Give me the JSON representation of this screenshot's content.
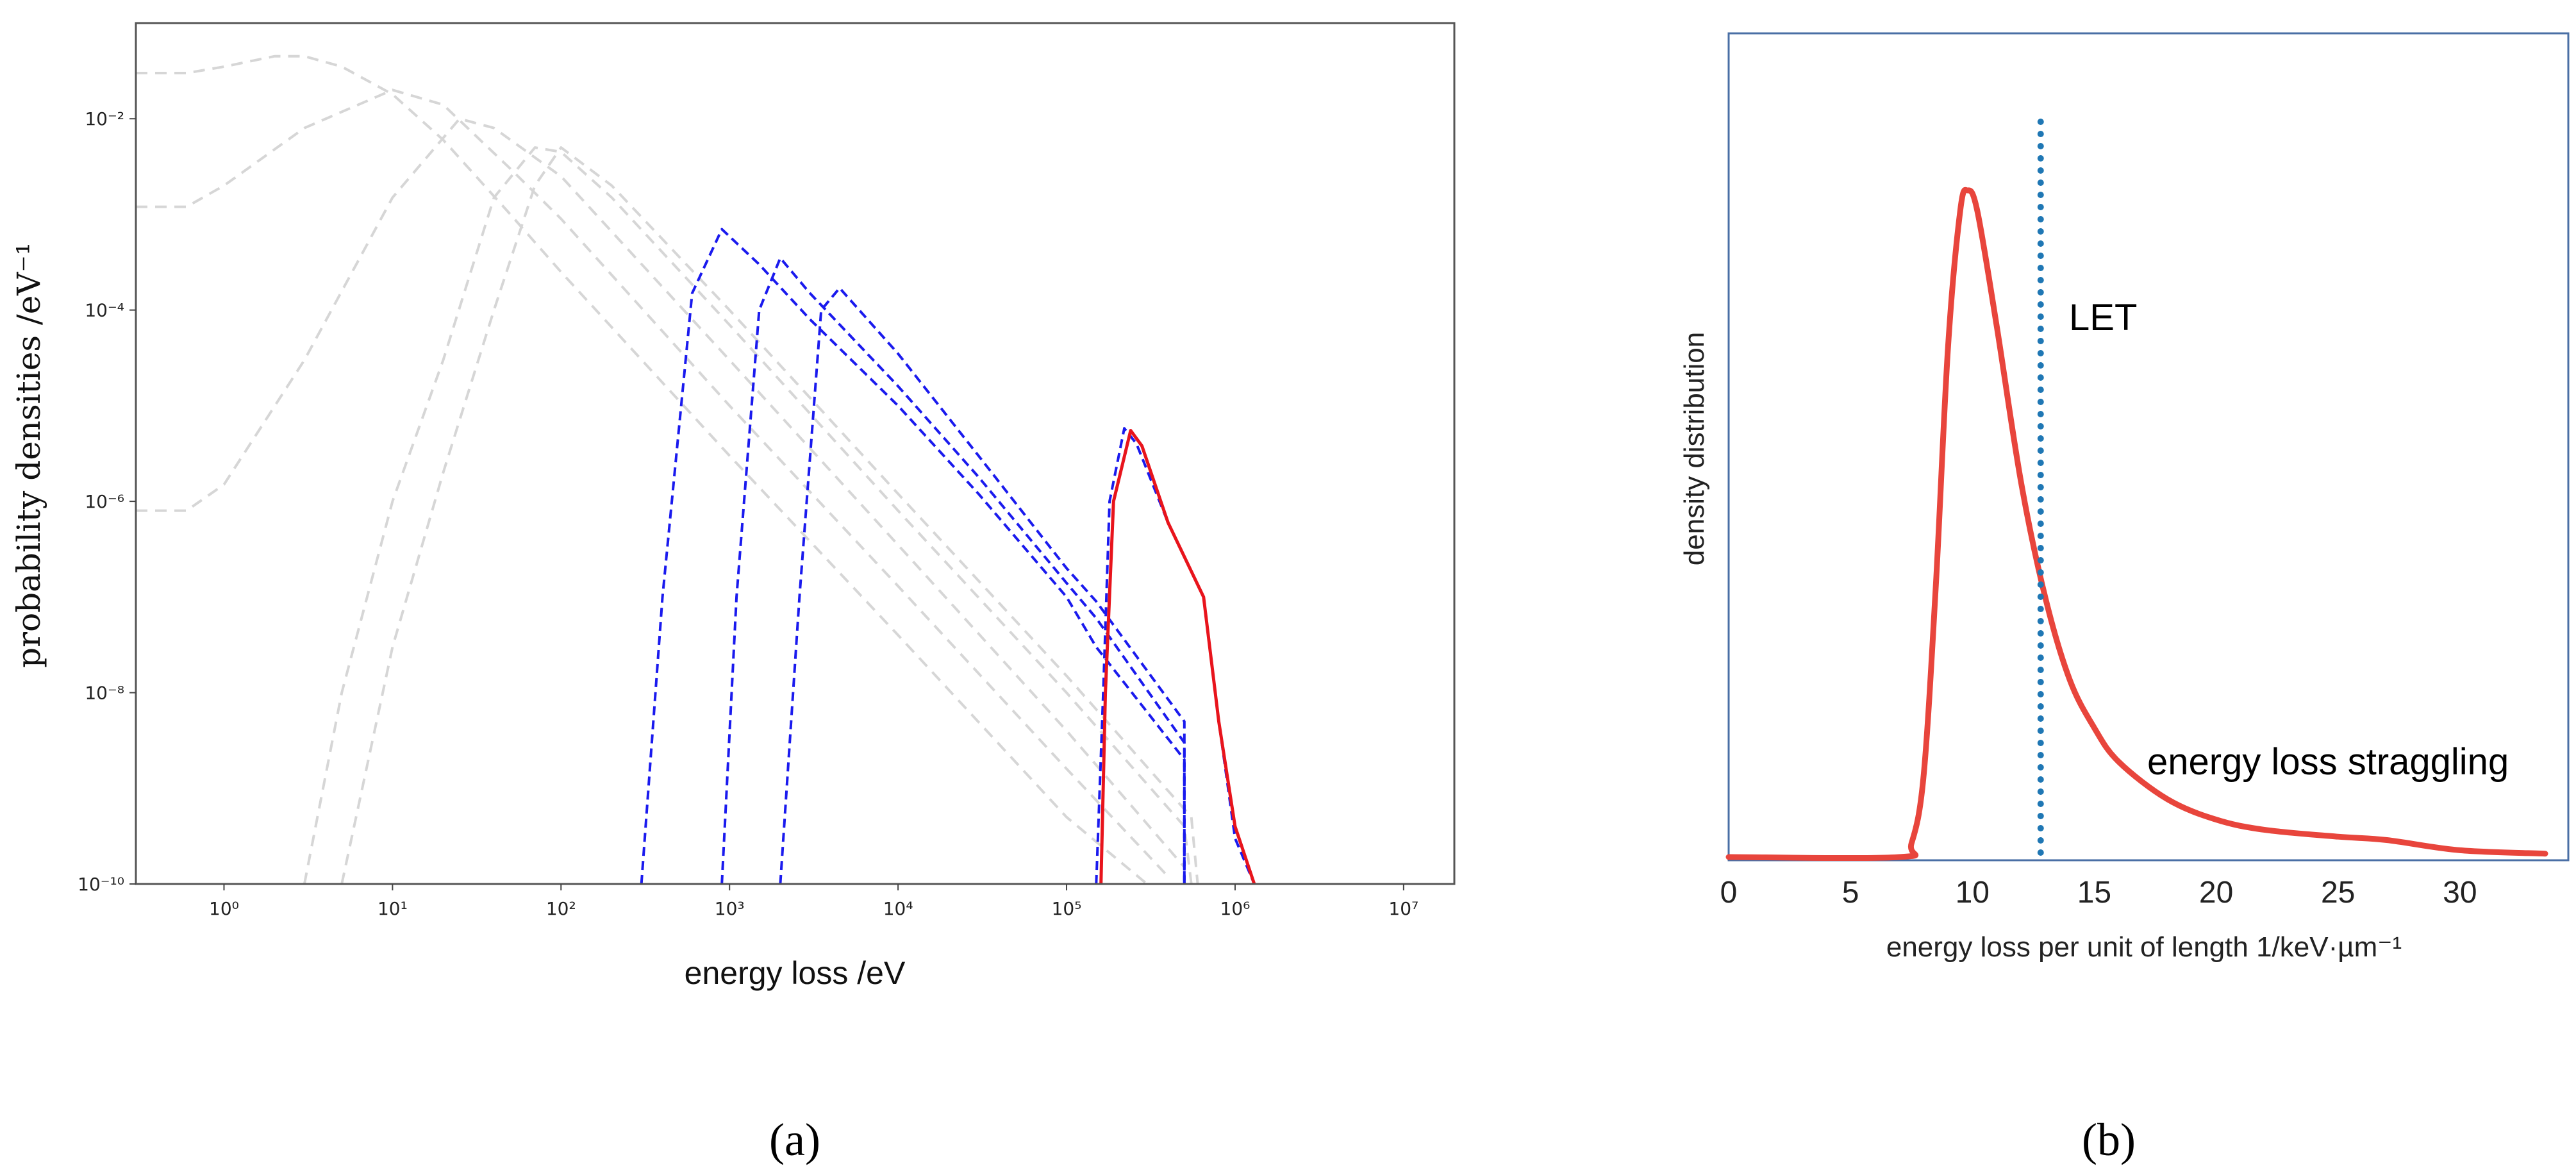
{
  "figure": {
    "panel_a_label": "(a)",
    "panel_b_label": "(b)"
  },
  "chart_data": [
    {
      "type": "line",
      "xlabel": "energy loss /eV",
      "ylabel": "probability densities /eV⁻¹",
      "x_scale": "log",
      "y_scale": "log",
      "xlim": [
        0.3,
        20000000
      ],
      "ylim": [
        1e-10,
        0.1
      ],
      "x_ticks": [
        {
          "value": 1,
          "label": "10⁰"
        },
        {
          "value": 10,
          "label": "10¹"
        },
        {
          "value": 100,
          "label": "10²"
        },
        {
          "value": 1000,
          "label": "10³"
        },
        {
          "value": 10000,
          "label": "10⁴"
        },
        {
          "value": 100000,
          "label": "10⁵"
        },
        {
          "value": 1000000,
          "label": "10⁶"
        },
        {
          "value": 10000000,
          "label": "10⁷"
        }
      ],
      "y_ticks": [
        {
          "value": 1e-10,
          "label": "10⁻¹⁰"
        },
        {
          "value": 1e-08,
          "label": "10⁻⁸"
        },
        {
          "value": 1e-06,
          "label": "10⁻⁶"
        },
        {
          "value": 0.0001,
          "label": "10⁻⁴"
        },
        {
          "value": 0.01,
          "label": "10⁻²"
        }
      ],
      "grid": false,
      "colors": {
        "grey": "#d6d6d6",
        "blue": "#1a1aee",
        "red": "#e8141c"
      },
      "series": [
        {
          "style": "grey-dashed",
          "points": [
            [
              0.3,
              0.03
            ],
            [
              0.6,
              0.03
            ],
            [
              1,
              0.035
            ],
            [
              2,
              0.045
            ],
            [
              3,
              0.045
            ],
            [
              5,
              0.035
            ],
            [
              10,
              0.018
            ],
            [
              20,
              0.006
            ],
            [
              50,
              0.001
            ],
            [
              100,
              0.00025
            ],
            [
              1000,
              3e-06
            ],
            [
              10000,
              4e-08
            ],
            [
              100000,
              5e-10
            ],
            [
              300000,
              1e-10
            ]
          ]
        },
        {
          "style": "grey-dashed",
          "points": [
            [
              0.3,
              0.0012
            ],
            [
              0.6,
              0.0012
            ],
            [
              1,
              0.002
            ],
            [
              3,
              0.008
            ],
            [
              10,
              0.02
            ],
            [
              20,
              0.014
            ],
            [
              50,
              0.003
            ],
            [
              100,
              0.0009
            ],
            [
              1000,
              1e-05
            ],
            [
              10000,
              1.3e-07
            ],
            [
              100000,
              1.6e-09
            ],
            [
              400000,
              1.2e-10
            ]
          ]
        },
        {
          "style": "grey-dashed",
          "points": [
            [
              0.3,
              8e-07
            ],
            [
              0.6,
              8e-07
            ],
            [
              1,
              1.5e-06
            ],
            [
              3,
              3e-05
            ],
            [
              10,
              0.0015
            ],
            [
              25,
              0.01
            ],
            [
              40,
              0.008
            ],
            [
              100,
              0.0025
            ],
            [
              1000,
              3e-05
            ],
            [
              10000,
              3.5e-07
            ],
            [
              100000,
              4e-09
            ],
            [
              500000,
              1.5e-10
            ]
          ]
        },
        {
          "style": "grey-dashed",
          "points": [
            [
              3,
              1e-10
            ],
            [
              5,
              1e-08
            ],
            [
              10,
              1e-06
            ],
            [
              20,
              3e-05
            ],
            [
              40,
              0.0015
            ],
            [
              70,
              0.005
            ],
            [
              100,
              0.0045
            ],
            [
              200,
              0.0015
            ],
            [
              1000,
              7e-05
            ],
            [
              10000,
              8e-07
            ],
            [
              100000,
              1e-08
            ],
            [
              500000,
              4e-10
            ],
            [
              550000,
              1e-10
            ]
          ]
        },
        {
          "style": "grey-dashed",
          "points": [
            [
              5,
              1e-10
            ],
            [
              10,
              3e-08
            ],
            [
              20,
              2e-06
            ],
            [
              40,
              0.0001
            ],
            [
              70,
              0.002
            ],
            [
              100,
              0.005
            ],
            [
              200,
              0.002
            ],
            [
              1000,
              0.0001
            ],
            [
              10000,
              1.2e-06
            ],
            [
              100000,
              1.5e-08
            ],
            [
              550000,
              5e-10
            ],
            [
              600000,
              1e-10
            ]
          ]
        },
        {
          "style": "blue-dashed",
          "points": [
            [
              300,
              1e-10
            ],
            [
              400,
              1e-07
            ],
            [
              600,
              0.00015
            ],
            [
              900,
              0.0007
            ],
            [
              1500,
              0.0003
            ],
            [
              3000,
              8e-05
            ],
            [
              10000,
              1e-05
            ],
            [
              30000,
              1.2e-06
            ],
            [
              100000,
              1e-07
            ],
            [
              150000,
              3e-08
            ],
            [
              500000,
              2e-09
            ],
            [
              500000,
              1.5e-10
            ],
            [
              500000,
              1e-10
            ]
          ]
        },
        {
          "style": "blue-dashed",
          "points": [
            [
              900,
              1e-10
            ],
            [
              1100,
              1e-07
            ],
            [
              1500,
              0.0001
            ],
            [
              2000,
              0.00035
            ],
            [
              3000,
              0.00015
            ],
            [
              10000,
              1.6e-05
            ],
            [
              30000,
              1.8e-06
            ],
            [
              100000,
              1.4e-07
            ],
            [
              150000,
              6e-08
            ],
            [
              500000,
              3e-09
            ],
            [
              500000,
              1e-10
            ]
          ]
        },
        {
          "style": "blue-dashed",
          "points": [
            [
              2000,
              1e-10
            ],
            [
              2600,
              1e-07
            ],
            [
              3500,
              0.0001
            ],
            [
              4500,
              0.00017
            ],
            [
              10000,
              3.5e-05
            ],
            [
              30000,
              3e-06
            ],
            [
              100000,
              2e-07
            ],
            [
              150000,
              9e-08
            ],
            [
              500000,
              5e-09
            ],
            [
              500000,
              1e-10
            ]
          ]
        },
        {
          "style": "blue-dashed",
          "points": [
            [
              150000,
              1e-10
            ],
            [
              165000,
              1e-08
            ],
            [
              180000,
              1e-06
            ],
            [
              220000,
              5.8e-06
            ],
            [
              260000,
              4e-06
            ],
            [
              400000,
              6e-07
            ],
            [
              650000,
              1e-07
            ],
            [
              800000,
              5e-09
            ],
            [
              1000000,
              3e-10
            ],
            [
              1300000,
              1e-10
            ]
          ]
        },
        {
          "style": "red-solid",
          "points": [
            [
              160000,
              1e-10
            ],
            [
              170000,
              1e-08
            ],
            [
              190000,
              1e-06
            ],
            [
              240000,
              5.5e-06
            ],
            [
              280000,
              3.8e-06
            ],
            [
              400000,
              6e-07
            ],
            [
              650000,
              1e-07
            ],
            [
              800000,
              5e-09
            ],
            [
              1000000,
              4e-10
            ],
            [
              1300000,
              1e-10
            ]
          ]
        }
      ]
    },
    {
      "type": "line",
      "xlabel": "energy loss per unit of length 1/keV·µm⁻¹",
      "ylabel": "density distribution",
      "xlim": [
        0,
        34
      ],
      "ylim": [
        0,
        1.0
      ],
      "x_ticks": [
        {
          "value": 0,
          "label": "0"
        },
        {
          "value": 5,
          "label": "5"
        },
        {
          "value": 10,
          "label": "10"
        },
        {
          "value": 15,
          "label": "15"
        },
        {
          "value": 20,
          "label": "20"
        },
        {
          "value": 25,
          "label": "25"
        },
        {
          "value": 30,
          "label": "30"
        }
      ],
      "grid": false,
      "colors": {
        "curve": "#e8453c",
        "let_line": "#1f77b4",
        "frame": "#4a6fa5"
      },
      "series": [
        {
          "points": [
            [
              0,
              0.0
            ],
            [
              7,
              0.0
            ],
            [
              7.5,
              0.02
            ],
            [
              8,
              0.12
            ],
            [
              8.5,
              0.4
            ],
            [
              9,
              0.75
            ],
            [
              9.5,
              0.95
            ],
            [
              9.8,
              0.98
            ],
            [
              10.2,
              0.95
            ],
            [
              11,
              0.78
            ],
            [
              12,
              0.55
            ],
            [
              13,
              0.38
            ],
            [
              14,
              0.26
            ],
            [
              15,
              0.19
            ],
            [
              16,
              0.14
            ],
            [
              18,
              0.085
            ],
            [
              20,
              0.055
            ],
            [
              22,
              0.04
            ],
            [
              25,
              0.03
            ],
            [
              27,
              0.025
            ],
            [
              30,
              0.01
            ],
            [
              33.5,
              0.005
            ]
          ]
        }
      ],
      "let_x": 12.8,
      "annotations": [
        "LET",
        "energy loss straggling"
      ]
    }
  ]
}
